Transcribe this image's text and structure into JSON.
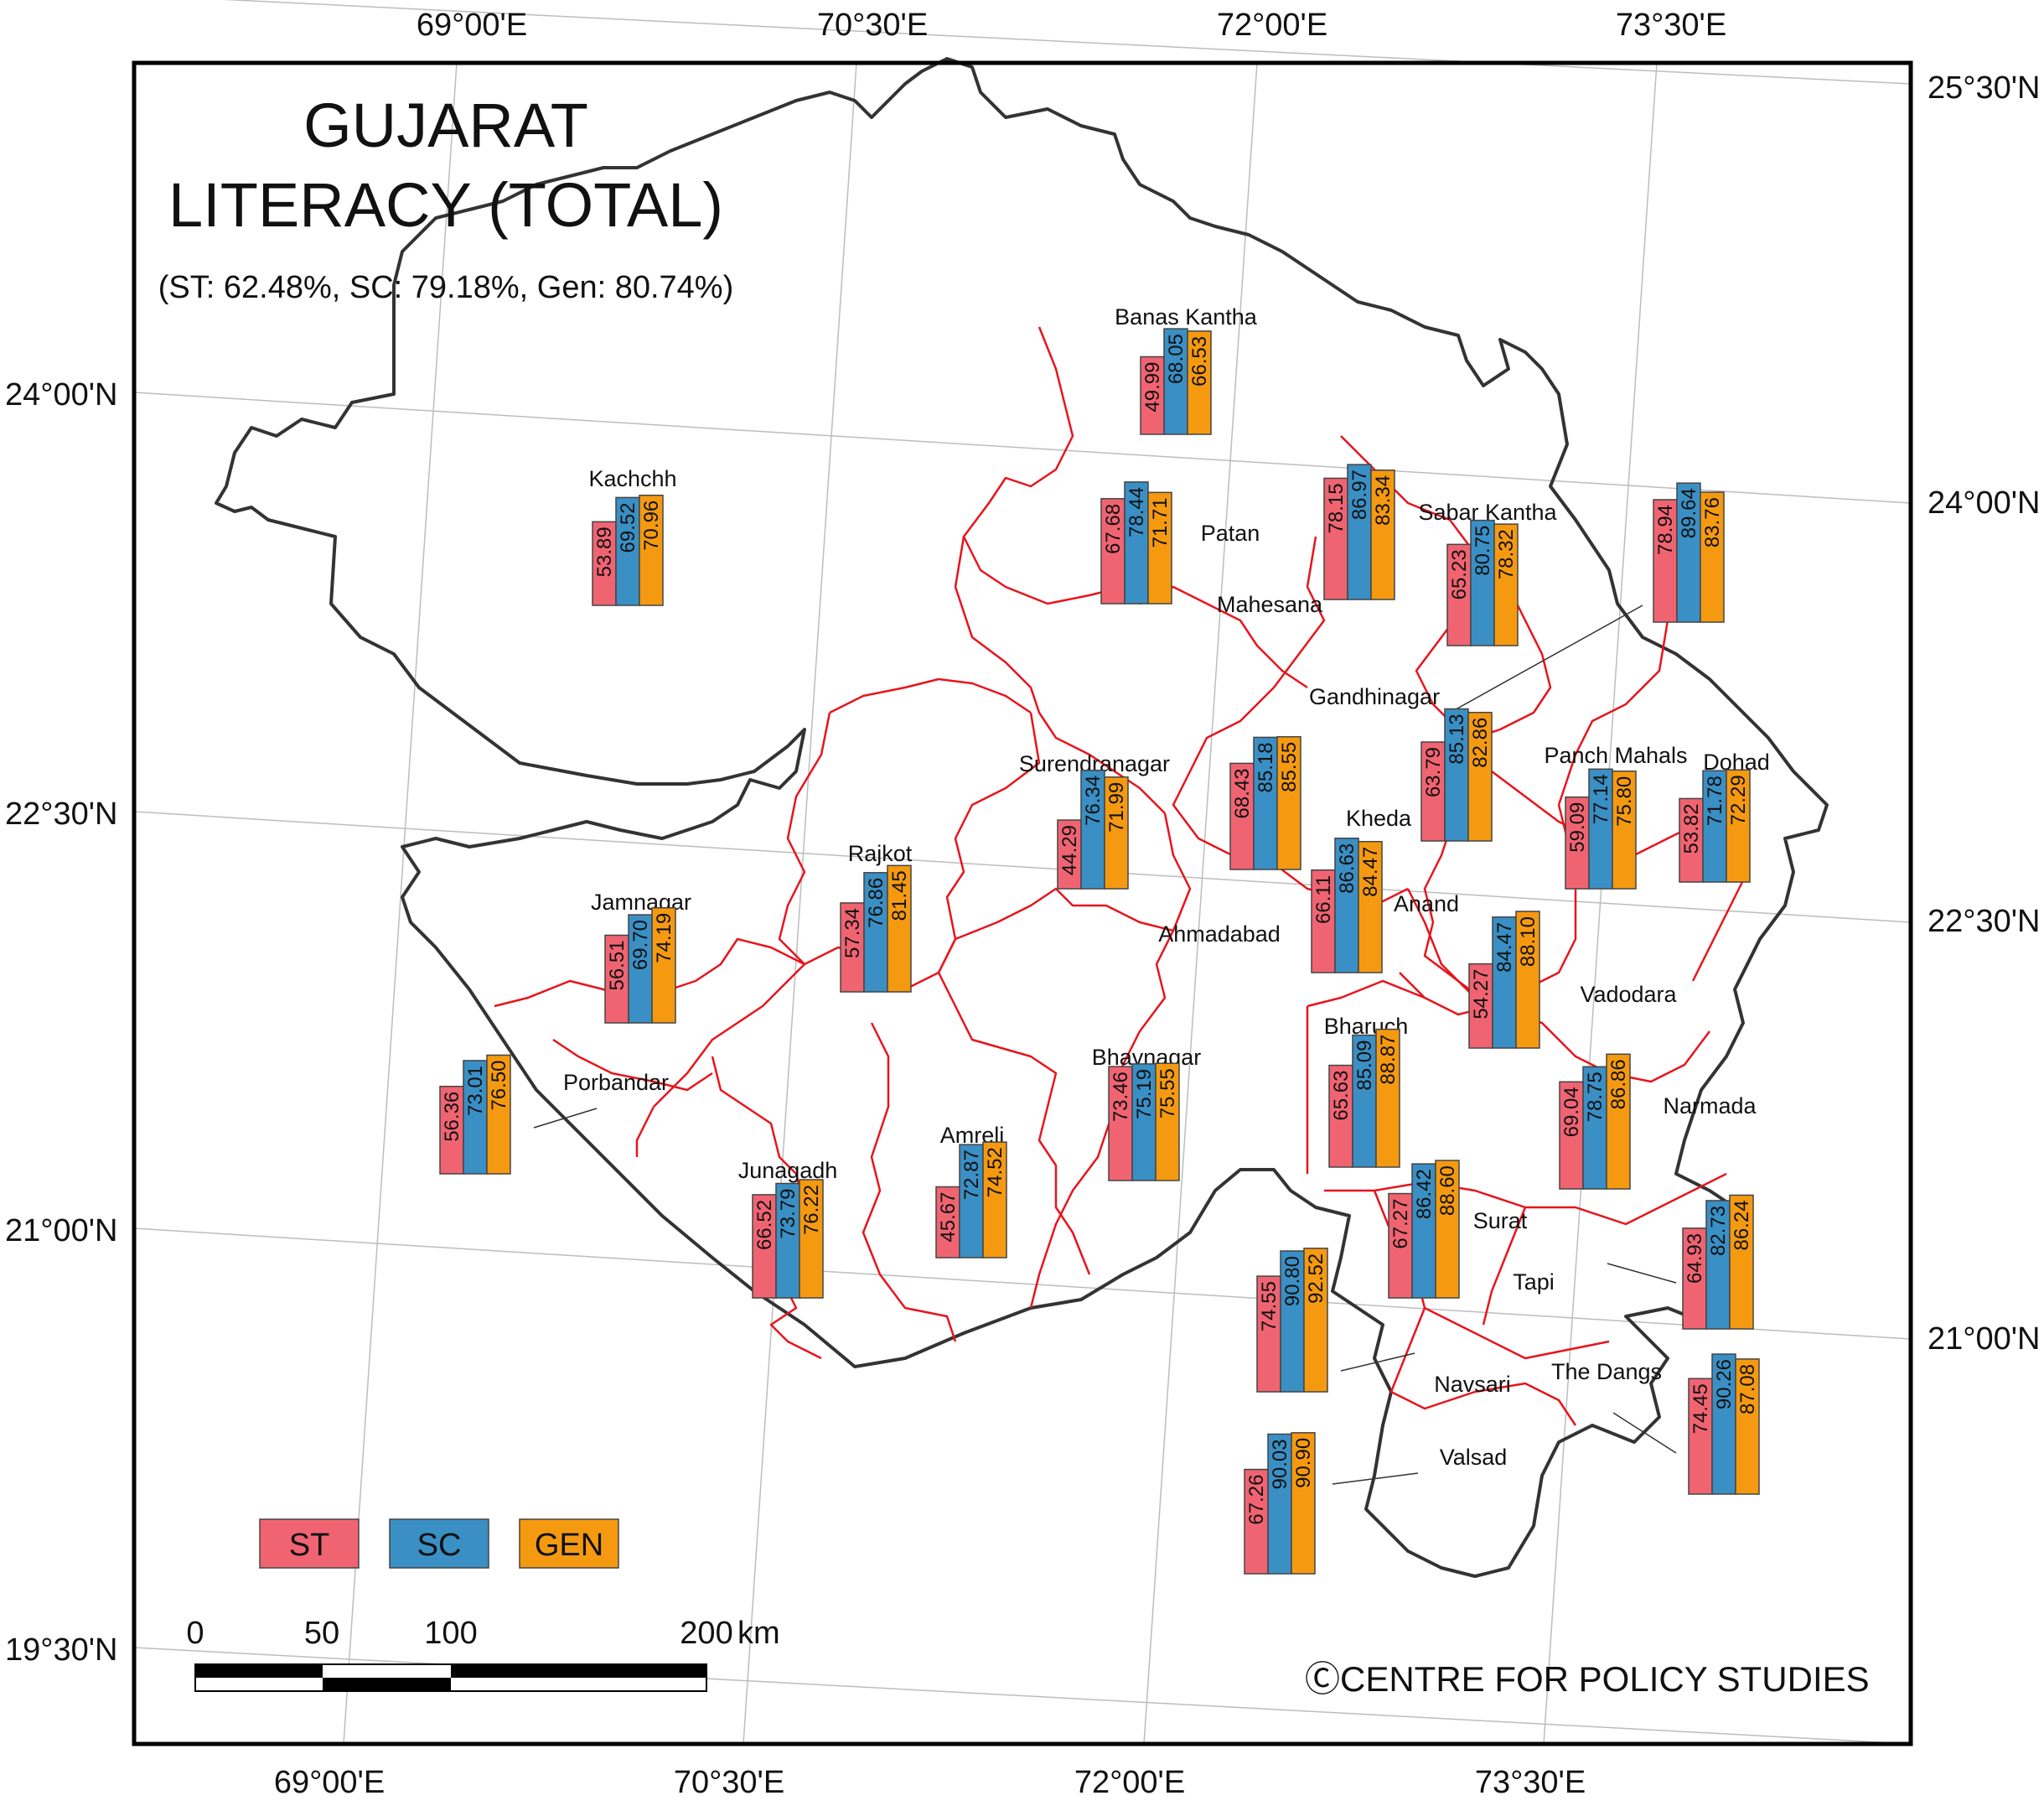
{
  "title_line1": "GUJARAT",
  "title_line2": "LITERACY (TOTAL)",
  "subtitle": "(ST: 62.48%, SC: 79.18%, Gen: 80.74%)",
  "colors": {
    "ST": "#f06472",
    "SC": "#3a8fc4",
    "GEN": "#f59a10",
    "district_boundary": "#e8141c",
    "state_boundary": "#333333",
    "graticule": "#bbbbbb"
  },
  "legend": [
    {
      "key": "ST",
      "label": "ST"
    },
    {
      "key": "SC",
      "label": "SC"
    },
    {
      "key": "GEN",
      "label": "GEN"
    }
  ],
  "graticule_labels": {
    "top": [
      "69°00'E",
      "70°30'E",
      "72°00'E",
      "73°30'E"
    ],
    "bottom": [
      "69°00'E",
      "70°30'E",
      "72°00'E",
      "73°30'E"
    ],
    "left": [
      "24°00'N",
      "22°30'N",
      "21°00'N",
      "19°30'N"
    ],
    "right": [
      "25°30'N",
      "24°00'N",
      "22°30'N",
      "21°00'N"
    ]
  },
  "scale_bar": {
    "labels": [
      "0",
      "50",
      "100",
      "200"
    ],
    "unit": "km"
  },
  "credit": "ⒸCENTRE FOR POLICY STUDIES",
  "districts": [
    {
      "name": "Banas Kantha",
      "values": [
        "49.99",
        "68.05",
        "66.53"
      ]
    },
    {
      "name": "Kachchh",
      "values": [
        "53.89",
        "69.52",
        "70.96"
      ]
    },
    {
      "name": "Patan",
      "values": [
        "67.68",
        "78.44",
        "71.71"
      ]
    },
    {
      "name": "Mahesana",
      "values": [
        "78.15",
        "86.97",
        "83.34"
      ]
    },
    {
      "name": "Sabar Kantha",
      "values": [
        "65.23",
        "80.75",
        "78.32"
      ]
    },
    {
      "name": "Gandhinagar",
      "values": [
        "78.94",
        "89.64",
        "83.76"
      ]
    },
    {
      "name": "Surendranagar",
      "values": [
        "44.29",
        "76.34",
        "71.99"
      ]
    },
    {
      "name": "Ahmadabad",
      "values": [
        "68.43",
        "85.18",
        "85.55"
      ]
    },
    {
      "name": "Kheda",
      "values": [
        "63.79",
        "85.13",
        "82.86"
      ]
    },
    {
      "name": "Panch Mahals",
      "values": [
        "59.09",
        "77.14",
        "75.80"
      ]
    },
    {
      "name": "Dohad",
      "values": [
        "53.82",
        "71.78",
        "72.29"
      ]
    },
    {
      "name": "Rajkot",
      "values": [
        "57.34",
        "76.86",
        "81.45"
      ]
    },
    {
      "name": "Jamnagar",
      "values": [
        "56.51",
        "69.70",
        "74.19"
      ]
    },
    {
      "name": "Anand",
      "values": [
        "66.11",
        "86.63",
        "84.47"
      ]
    },
    {
      "name": "Vadodara",
      "values": [
        "54.27",
        "84.47",
        "88.10"
      ]
    },
    {
      "name": "Porbandar",
      "values": [
        "56.36",
        "73.01",
        "76.50"
      ]
    },
    {
      "name": "Bharuch",
      "values": [
        "65.63",
        "85.09",
        "88.87"
      ]
    },
    {
      "name": "Bhavnagar",
      "values": [
        "73.46",
        "75.19",
        "75.55"
      ]
    },
    {
      "name": "Narmada",
      "values": [
        "69.04",
        "78.75",
        "86.86"
      ]
    },
    {
      "name": "Amreli",
      "values": [
        "45.67",
        "72.87",
        "74.52"
      ]
    },
    {
      "name": "Junagadh",
      "values": [
        "66.52",
        "73.79",
        "76.22"
      ]
    },
    {
      "name": "Surat",
      "values": [
        "67.27",
        "86.42",
        "88.60"
      ]
    },
    {
      "name": "Tapi",
      "values": [
        "64.93",
        "82.73",
        "86.24"
      ]
    },
    {
      "name": "Navsari",
      "values": [
        "74.55",
        "90.80",
        "92.52"
      ]
    },
    {
      "name": "The Dangs",
      "values": [
        "74.45",
        "90.26",
        "87.08"
      ]
    },
    {
      "name": "Valsad",
      "values": [
        "67.26",
        "90.03",
        "90.90"
      ]
    }
  ]
}
